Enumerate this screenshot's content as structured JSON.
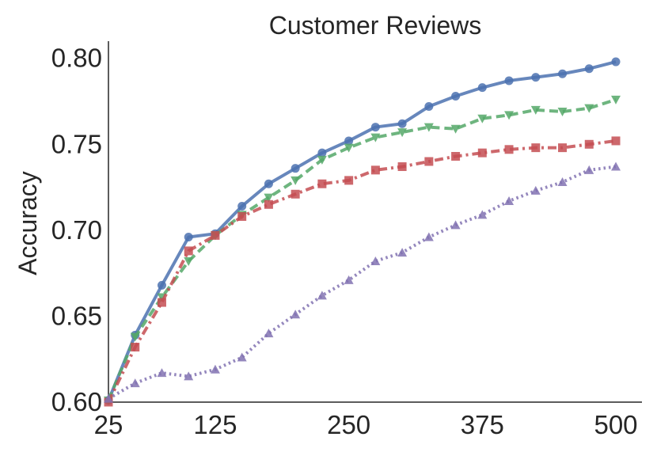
{
  "chart_data": {
    "type": "line",
    "title": "Customer Reviews",
    "xlabel": "",
    "ylabel": "Accuracy",
    "xlim": [
      25,
      500
    ],
    "ylim": [
      0.6,
      0.81
    ],
    "x_ticks": [
      25,
      125,
      250,
      375,
      500
    ],
    "x_tick_labels": [
      "25",
      "125",
      "250",
      "375",
      "500"
    ],
    "y_ticks": [
      0.6,
      0.65,
      0.7,
      0.75,
      0.8
    ],
    "y_tick_labels": [
      "0.60",
      "0.65",
      "0.70",
      "0.75",
      "0.80"
    ],
    "grid": false,
    "x": [
      25,
      50,
      75,
      100,
      125,
      150,
      175,
      200,
      225,
      250,
      275,
      300,
      325,
      350,
      375,
      400,
      425,
      450,
      475,
      500
    ],
    "series": [
      {
        "color": "#4C72B0",
        "line": "solid",
        "marker": "circle",
        "values": [
          0.601,
          0.639,
          0.668,
          0.696,
          0.698,
          0.714,
          0.727,
          0.736,
          0.745,
          0.752,
          0.76,
          0.762,
          0.772,
          0.778,
          0.783,
          0.787,
          0.789,
          0.791,
          0.794,
          0.798
        ]
      },
      {
        "color": "#55A868",
        "line": "dashed",
        "marker": "triangle-down",
        "values": [
          0.601,
          0.638,
          0.661,
          0.682,
          0.697,
          0.709,
          0.719,
          0.729,
          0.741,
          0.748,
          0.754,
          0.757,
          0.76,
          0.759,
          0.765,
          0.767,
          0.77,
          0.769,
          0.771,
          0.776
        ]
      },
      {
        "color": "#C44E52",
        "line": "dashdot",
        "marker": "square",
        "values": [
          0.6,
          0.632,
          0.658,
          0.688,
          0.697,
          0.708,
          0.715,
          0.721,
          0.727,
          0.729,
          0.735,
          0.737,
          0.74,
          0.743,
          0.745,
          0.747,
          0.748,
          0.748,
          0.75,
          0.752
        ]
      },
      {
        "color": "#8172B2",
        "line": "dotted",
        "marker": "triangle-up",
        "values": [
          0.602,
          0.611,
          0.617,
          0.615,
          0.619,
          0.626,
          0.64,
          0.651,
          0.662,
          0.671,
          0.682,
          0.687,
          0.696,
          0.703,
          0.709,
          0.717,
          0.723,
          0.728,
          0.735,
          0.737
        ]
      }
    ]
  }
}
